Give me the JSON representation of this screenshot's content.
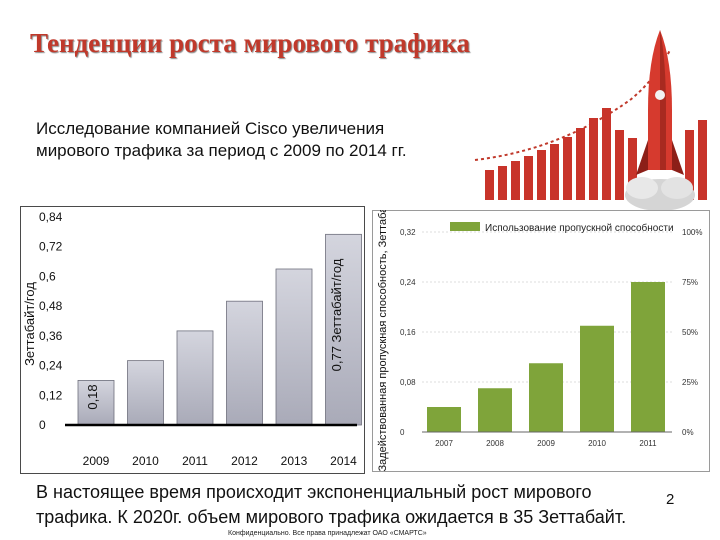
{
  "slide": {
    "title": "Тенденции роста мирового трафика",
    "subtitle_line1": "Исследование компанией Cisco увеличения",
    "subtitle_line2": "мирового трафика за период с 2009 по 2014 гг.",
    "footer_line1": "В настоящее время происходит экспоненциальный рост мирового",
    "footer_line2": "трафика. К 2020г. объем мирового трафика ожидается в 35 Зеттабайт.",
    "page_number": "2",
    "confidential": "Конфиденциально. Все права принадлежат ОАО «СМАРТС»",
    "accent_color": "#c0392b"
  },
  "chart_data": [
    {
      "type": "bar",
      "title": "",
      "ylabel": "Зеттабайт/год",
      "xlabel": "",
      "categories": [
        "2009",
        "2010",
        "2011",
        "2012",
        "2013",
        "2014"
      ],
      "values": [
        0.18,
        0.26,
        0.38,
        0.5,
        0.63,
        0.77
      ],
      "ylim": [
        0,
        0.84
      ],
      "yticks": [
        "0",
        "0,12",
        "0,24",
        "0,36",
        "0,48",
        "0,6",
        "0,72",
        "0,84"
      ],
      "annotations": [
        "0,18",
        "0,77 Зеттабайт/год"
      ],
      "bar_color": "#a9aab8",
      "grid": false
    },
    {
      "type": "bar",
      "title": "",
      "legend": [
        "Использование пропускной способности"
      ],
      "legend_position": "top",
      "ylabel": "Задействованная пропускная способность, Зеттабайт/год",
      "categories": [
        "2007",
        "2008",
        "2009",
        "2010",
        "2011"
      ],
      "values": [
        0.04,
        0.07,
        0.11,
        0.17,
        0.24
      ],
      "ylim": [
        0,
        0.32
      ],
      "yticks_left": [
        "0",
        "0,08",
        "0,16",
        "0,24",
        "0,32"
      ],
      "yticks_right": [
        "0%",
        "25%",
        "50%",
        "75%",
        "100%"
      ],
      "bar_color": "#7fa43a",
      "grid": true
    }
  ]
}
